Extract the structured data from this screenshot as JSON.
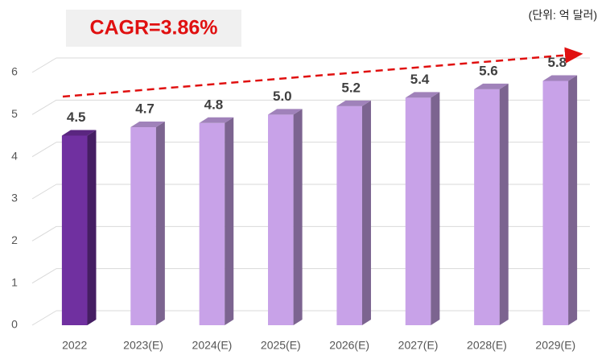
{
  "chart_data": {
    "type": "bar3d",
    "annotation": "CAGR=3.86%",
    "unit_note": "(단위: 억 달러)",
    "categories": [
      "2022",
      "2023(E)",
      "2024(E)",
      "2025(E)",
      "2026(E)",
      "2027(E)",
      "2028(E)",
      "2029(E)"
    ],
    "values": [
      4.5,
      4.7,
      4.8,
      5.0,
      5.2,
      5.4,
      5.6,
      5.8
    ],
    "value_labels": [
      "4.5",
      "4.7",
      "4.8",
      "5.0",
      "5.2",
      "5.4",
      "5.6",
      "5.8"
    ],
    "colors": [
      "#7030a0",
      "#c8a2e8",
      "#c8a2e8",
      "#c8a2e8",
      "#c8a2e8",
      "#c8a2e8",
      "#c8a2e8",
      "#c8a2e8"
    ],
    "ylim": [
      0,
      6
    ],
    "yticks": [
      0,
      1,
      2,
      3,
      4,
      5,
      6
    ],
    "grid": true
  }
}
